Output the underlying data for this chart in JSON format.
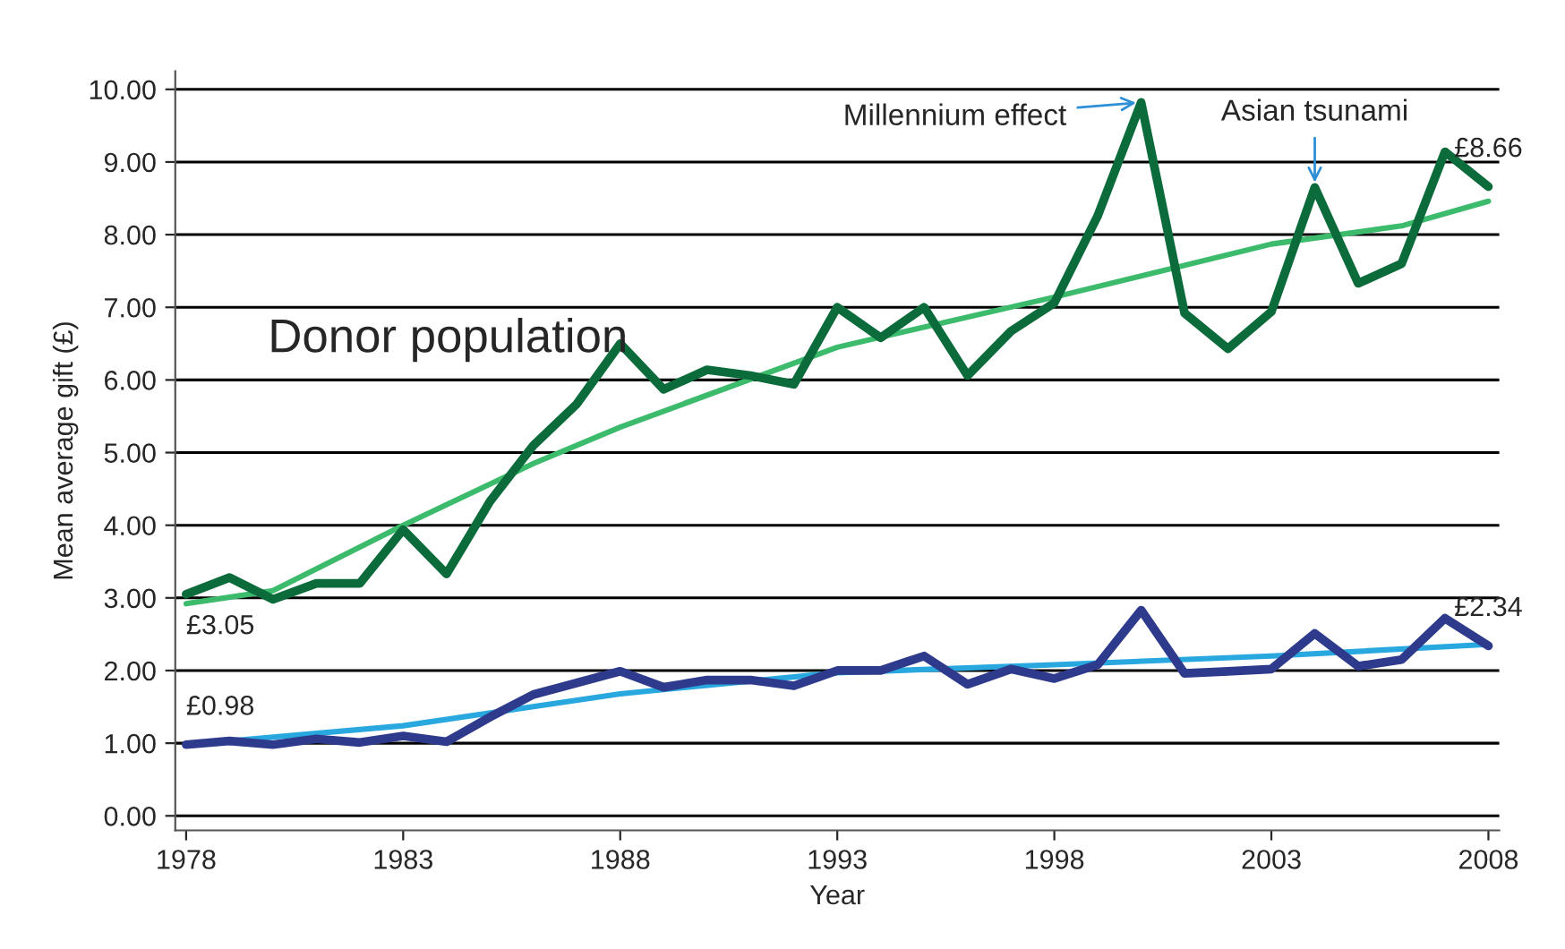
{
  "chart_data": {
    "type": "line",
    "xlabel": "Year",
    "ylabel": "Mean average gift (£)",
    "x": [
      1978,
      1979,
      1980,
      1981,
      1982,
      1983,
      1984,
      1985,
      1986,
      1987,
      1988,
      1989,
      1990,
      1991,
      1992,
      1993,
      1994,
      1995,
      1996,
      1997,
      1998,
      1999,
      2000,
      2001,
      2002,
      2003,
      2004,
      2005,
      2006,
      2007,
      2008
    ],
    "series": [
      {
        "color": "#0b6b3a",
        "values": [
          3.05,
          3.28,
          2.98,
          3.2,
          3.2,
          3.94,
          3.33,
          4.33,
          5.1,
          5.67,
          6.5,
          5.87,
          6.14,
          6.06,
          5.94,
          7.0,
          6.58,
          7.0,
          6.06,
          6.67,
          7.06,
          8.26,
          9.82,
          6.92,
          6.43,
          6.94,
          8.65,
          7.33,
          7.6,
          9.14,
          8.66
        ],
        "value_labels": [
          "£3.05",
          null,
          null,
          null,
          null,
          null,
          null,
          null,
          null,
          null,
          null,
          null,
          null,
          null,
          null,
          null,
          null,
          null,
          null,
          null,
          null,
          null,
          null,
          null,
          null,
          null,
          null,
          null,
          null,
          null,
          "£8.66"
        ]
      },
      {
        "type": "line",
        "color": "#3dbb6c",
        "x": [
          1978,
          1980,
          1983,
          1986,
          1988,
          1993,
          1998,
          2003,
          2006,
          2008
        ],
        "values": [
          2.92,
          3.1,
          4.0,
          4.85,
          5.35,
          6.45,
          7.14,
          7.87,
          8.12,
          8.46
        ]
      },
      {
        "color": "#2e3a8c",
        "values": [
          0.98,
          1.03,
          0.98,
          1.06,
          1.01,
          1.1,
          1.02,
          1.36,
          1.67,
          1.83,
          1.99,
          1.77,
          1.87,
          1.87,
          1.79,
          2.0,
          2.0,
          2.2,
          1.81,
          2.02,
          1.89,
          2.08,
          2.83,
          1.96,
          1.99,
          2.02,
          2.51,
          2.06,
          2.15,
          2.72,
          2.34
        ],
        "value_labels": [
          "£0.98",
          null,
          null,
          null,
          null,
          null,
          null,
          null,
          null,
          null,
          null,
          null,
          null,
          null,
          null,
          null,
          null,
          null,
          null,
          null,
          null,
          null,
          null,
          null,
          null,
          null,
          null,
          null,
          null,
          null,
          "£2.34"
        ]
      },
      {
        "type": "line",
        "color": "#29a8e0",
        "x": [
          1978,
          1983,
          1988,
          1993,
          1998,
          2003,
          2008
        ],
        "values": [
          0.98,
          1.24,
          1.68,
          1.97,
          2.08,
          2.2,
          2.36
        ]
      }
    ],
    "annotations": [
      "Donor population",
      {
        "text": "Millennium effect",
        "x": 2000,
        "y": 9.82
      },
      {
        "text": "Asian tsunami",
        "x": 2004,
        "y": 8.65
      }
    ],
    "xlim": [
      1977.75,
      2008.25
    ],
    "xticks": [
      1978,
      1983,
      1988,
      1993,
      1998,
      2003,
      2008
    ],
    "ylim": [
      -0.2,
      10.25
    ],
    "yticks": [
      {
        "value": 0,
        "label": "0.00"
      },
      {
        "value": 1,
        "label": "1.00"
      },
      {
        "value": 2,
        "label": "2.00"
      },
      {
        "value": 3,
        "label": "3.00"
      },
      {
        "value": 4,
        "label": "4.00"
      },
      {
        "value": 5,
        "label": "5.00"
      },
      {
        "value": 6,
        "label": "6.00"
      },
      {
        "value": 7,
        "label": "7.00"
      },
      {
        "value": 8,
        "label": "8.00"
      },
      {
        "value": 9,
        "label": "9.00"
      },
      {
        "value": 10,
        "label": "10.00"
      }
    ],
    "grid": "y",
    "legend": false,
    "marker": "none",
    "line_style": "solid"
  }
}
